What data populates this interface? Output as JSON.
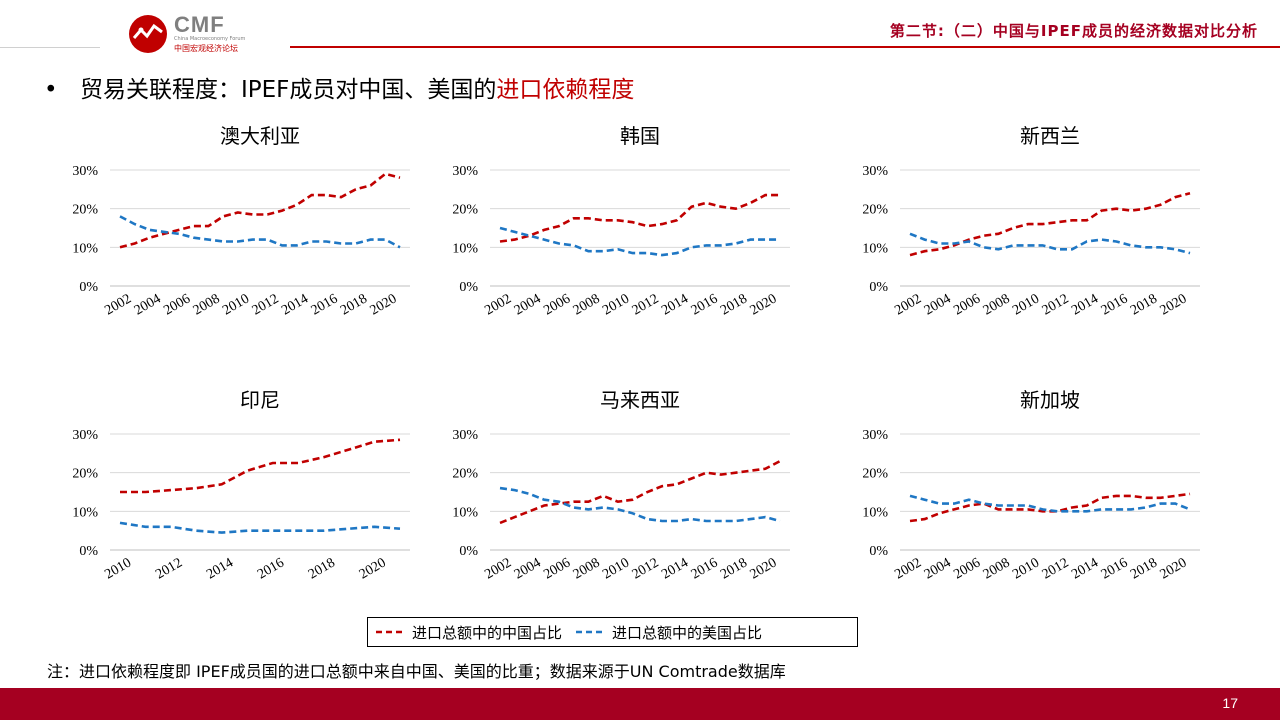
{
  "header": {
    "logo_text": "CMF",
    "logo_sub": "China Macroeconomy Forum",
    "logo_cn": "中国宏观经济论坛",
    "section_title": "第二节:（二）中国与IPEF成员的经济数据对比分析"
  },
  "bullet": {
    "dot": "•",
    "text_main": "贸易关联程度：IPEF成员对中国、美国的",
    "text_highlight": "进口依赖程度"
  },
  "legend": {
    "china": "进口总额中的中国占比",
    "us": "进口总额中的美国占比"
  },
  "note": "注：进口依赖程度即 IPEF成员国的进口总额中来自中国、美国的比重；数据来源于UN Comtrade数据库",
  "footer": {
    "page": "17"
  },
  "colors": {
    "china": "#c00000",
    "us": "#1f77c4",
    "accent": "#a50021"
  },
  "chart_data": [
    {
      "type": "line",
      "title": "澳大利亚",
      "x": [
        2002,
        2003,
        2004,
        2005,
        2006,
        2007,
        2008,
        2009,
        2010,
        2011,
        2012,
        2013,
        2014,
        2015,
        2016,
        2017,
        2018,
        2019,
        2020,
        2021
      ],
      "xticks": [
        "2002",
        "2004",
        "2006",
        "2008",
        "2010",
        "2012",
        "2014",
        "2016",
        "2018",
        "2020"
      ],
      "yticks": [
        "0%",
        "10%",
        "20%",
        "30%"
      ],
      "ylim": [
        0,
        30
      ],
      "grid": true,
      "series": [
        {
          "name": "进口总额中的中国占比",
          "color": "#c00000",
          "style": "dashed",
          "values": [
            10,
            11,
            12.5,
            13.5,
            14.5,
            15.5,
            15.5,
            18,
            19,
            18.5,
            18.5,
            19.5,
            21,
            23.5,
            23.5,
            23,
            25,
            26,
            29,
            28
          ]
        },
        {
          "name": "进口总额中的美国占比",
          "color": "#1f77c4",
          "style": "dashed",
          "values": [
            18,
            16,
            14.5,
            14,
            13.5,
            12.5,
            12,
            11.5,
            11.5,
            12,
            12,
            10.5,
            10.5,
            11.5,
            11.5,
            11,
            11,
            12,
            12,
            10
          ]
        }
      ]
    },
    {
      "type": "line",
      "title": "韩国",
      "x": [
        2002,
        2003,
        2004,
        2005,
        2006,
        2007,
        2008,
        2009,
        2010,
        2011,
        2012,
        2013,
        2014,
        2015,
        2016,
        2017,
        2018,
        2019,
        2020,
        2021
      ],
      "xticks": [
        "2002",
        "2004",
        "2006",
        "2008",
        "2010",
        "2012",
        "2014",
        "2016",
        "2018",
        "2020"
      ],
      "yticks": [
        "0%",
        "10%",
        "20%",
        "30%"
      ],
      "ylim": [
        0,
        30
      ],
      "grid": true,
      "series": [
        {
          "name": "进口总额中的中国占比",
          "color": "#c00000",
          "style": "dashed",
          "values": [
            11.5,
            12,
            13,
            14.5,
            15.5,
            17.5,
            17.5,
            17,
            17,
            16.5,
            15.5,
            16,
            17,
            20.5,
            21.5,
            20.5,
            20,
            21.5,
            23.5,
            23.5
          ]
        },
        {
          "name": "进口总额中的美国占比",
          "color": "#1f77c4",
          "style": "dashed",
          "values": [
            15,
            14,
            13,
            12,
            11,
            10.5,
            9,
            9,
            9.5,
            8.5,
            8.5,
            8,
            8.5,
            10,
            10.5,
            10.5,
            11,
            12,
            12,
            12
          ]
        }
      ]
    },
    {
      "type": "line",
      "title": "新西兰",
      "x": [
        2002,
        2003,
        2004,
        2005,
        2006,
        2007,
        2008,
        2009,
        2010,
        2011,
        2012,
        2013,
        2014,
        2015,
        2016,
        2017,
        2018,
        2019,
        2020,
        2021
      ],
      "xticks": [
        "2002",
        "2004",
        "2006",
        "2008",
        "2010",
        "2012",
        "2014",
        "2016",
        "2018",
        "2020"
      ],
      "yticks": [
        "0%",
        "10%",
        "20%",
        "30%"
      ],
      "ylim": [
        0,
        30
      ],
      "grid": true,
      "series": [
        {
          "name": "进口总额中的中国占比",
          "color": "#c00000",
          "style": "dashed",
          "values": [
            8,
            9,
            9.5,
            10.5,
            12,
            13,
            13.5,
            15,
            16,
            16,
            16.5,
            17,
            17,
            19.5,
            20,
            19.5,
            20,
            21,
            23,
            24
          ]
        },
        {
          "name": "进口总额中的美国占比",
          "color": "#1f77c4",
          "style": "dashed",
          "values": [
            13.5,
            12,
            11,
            11,
            11.5,
            10,
            9.5,
            10.5,
            10.5,
            10.5,
            9.5,
            9.5,
            11.5,
            12,
            11.5,
            10.5,
            10,
            10,
            9.5,
            8.5
          ]
        }
      ]
    },
    {
      "type": "line",
      "title": "印尼",
      "x": [
        2010,
        2011,
        2012,
        2013,
        2014,
        2015,
        2016,
        2017,
        2018,
        2019,
        2020,
        2021
      ],
      "xticks": [
        "2010",
        "2012",
        "2014",
        "2016",
        "2018",
        "2020"
      ],
      "yticks": [
        "0%",
        "10%",
        "20%",
        "30%"
      ],
      "ylim": [
        0,
        30
      ],
      "grid": true,
      "series": [
        {
          "name": "进口总额中的中国占比",
          "color": "#c00000",
          "style": "dashed",
          "values": [
            15,
            15,
            15.5,
            16,
            17,
            20.5,
            22.5,
            22.5,
            24,
            26,
            28,
            28.5
          ]
        },
        {
          "name": "进口总额中的美国占比",
          "color": "#1f77c4",
          "style": "dashed",
          "values": [
            7,
            6,
            6,
            5,
            4.5,
            5,
            5,
            5,
            5,
            5.5,
            6,
            5.5
          ]
        }
      ]
    },
    {
      "type": "line",
      "title": "马来西亚",
      "x": [
        2002,
        2003,
        2004,
        2005,
        2006,
        2007,
        2008,
        2009,
        2010,
        2011,
        2012,
        2013,
        2014,
        2015,
        2016,
        2017,
        2018,
        2019,
        2020,
        2021
      ],
      "xticks": [
        "2002",
        "2004",
        "2006",
        "2008",
        "2010",
        "2012",
        "2014",
        "2016",
        "2018",
        "2020"
      ],
      "yticks": [
        "0%",
        "10%",
        "20%",
        "30%"
      ],
      "ylim": [
        0,
        30
      ],
      "grid": true,
      "series": [
        {
          "name": "进口总额中的中国占比",
          "color": "#c00000",
          "style": "dashed",
          "values": [
            7,
            8.5,
            10,
            11.5,
            12,
            12.5,
            12.5,
            14,
            12.5,
            13,
            15,
            16.5,
            17,
            18.5,
            20,
            19.5,
            20,
            20.5,
            21,
            23
          ]
        },
        {
          "name": "进口总额中的美国占比",
          "color": "#1f77c4",
          "style": "dashed",
          "values": [
            16,
            15.5,
            14.5,
            13,
            12.5,
            11,
            10.5,
            11,
            10.5,
            9.5,
            8,
            7.5,
            7.5,
            8,
            7.5,
            7.5,
            7.5,
            8,
            8.5,
            7.5
          ]
        }
      ]
    },
    {
      "type": "line",
      "title": "新加坡",
      "x": [
        2002,
        2003,
        2004,
        2005,
        2006,
        2007,
        2008,
        2009,
        2010,
        2011,
        2012,
        2013,
        2014,
        2015,
        2016,
        2017,
        2018,
        2019,
        2020,
        2021
      ],
      "xticks": [
        "2002",
        "2004",
        "2006",
        "2008",
        "2010",
        "2012",
        "2014",
        "2016",
        "2018",
        "2020"
      ],
      "yticks": [
        "0%",
        "10%",
        "20%",
        "30%"
      ],
      "ylim": [
        0,
        30
      ],
      "grid": true,
      "series": [
        {
          "name": "进口总额中的中国占比",
          "color": "#c00000",
          "style": "dashed",
          "values": [
            7.5,
            8,
            9.5,
            10.5,
            11.5,
            12,
            10.5,
            10.5,
            10.5,
            10,
            10,
            11,
            11.5,
            13.5,
            14,
            14,
            13.5,
            13.5,
            14,
            14.5
          ]
        },
        {
          "name": "进口总额中的美国占比",
          "color": "#1f77c4",
          "style": "dashed",
          "values": [
            14,
            13,
            12,
            12,
            13,
            12,
            11.5,
            11.5,
            11.5,
            10.5,
            10,
            10,
            10,
            10.5,
            10.5,
            10.5,
            11,
            12,
            12,
            10.5
          ]
        }
      ]
    }
  ]
}
